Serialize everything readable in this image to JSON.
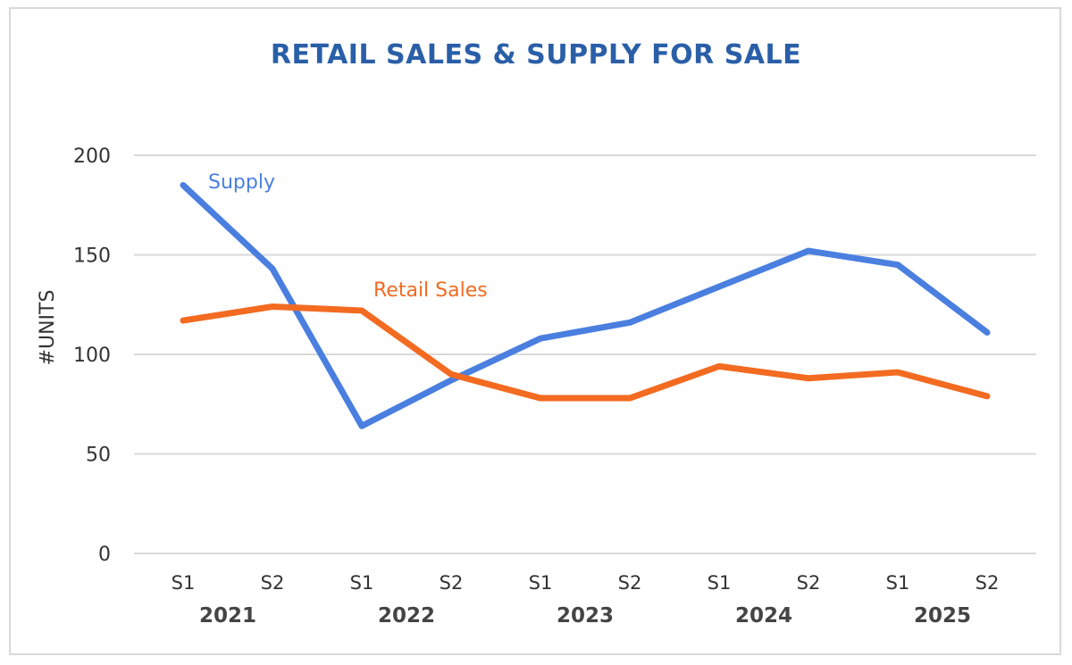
{
  "chart_data": {
    "type": "line",
    "title": "RETAIL SALES & SUPPLY FOR SALE",
    "xlabel": "",
    "ylabel": "#UNITS",
    "ylim": [
      0,
      200
    ],
    "yticks": [
      0,
      50,
      100,
      150,
      200
    ],
    "grid": true,
    "categories": [
      "S1",
      "S2",
      "S1",
      "S2",
      "S1",
      "S2",
      "S1",
      "S2",
      "S1",
      "S2"
    ],
    "years": [
      "2021",
      "2022",
      "2023",
      "2024",
      "2025"
    ],
    "series": [
      {
        "name": "Supply",
        "color": "#4a7fe0",
        "values": [
          185,
          143,
          64,
          87,
          108,
          116,
          134,
          152,
          145,
          111
        ]
      },
      {
        "name": "Retail Sales",
        "color": "#f26b21",
        "values": [
          117,
          124,
          122,
          90,
          78,
          78,
          94,
          88,
          91,
          79
        ]
      }
    ],
    "legend": "inline labels"
  }
}
